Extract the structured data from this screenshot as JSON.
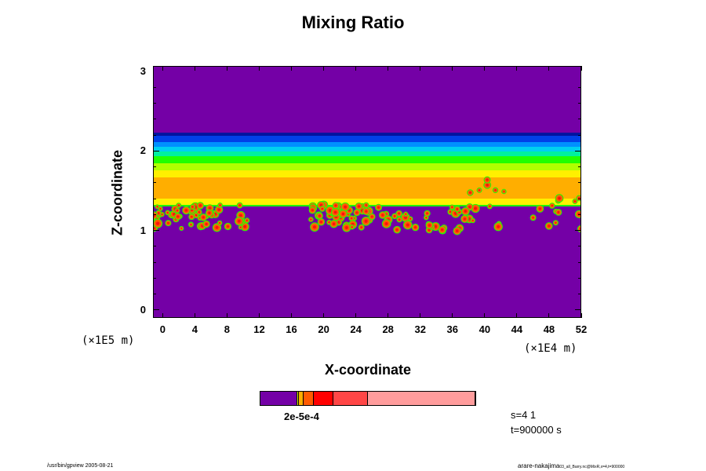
{
  "chart_data": {
    "type": "heatmap",
    "title": "Mixing Ratio",
    "xlabel": "X-coordinate",
    "ylabel": "Z-coordinate",
    "x_unit": "(×1E4 m)",
    "y_unit": "(×1E5 m)",
    "xlim": [
      -1.2,
      52
    ],
    "ylim": [
      -0.1,
      3.07
    ],
    "xticks": [
      "0",
      "4",
      "8",
      "12",
      "16",
      "20",
      "24",
      "28",
      "32",
      "36",
      "40",
      "44",
      "48",
      "52"
    ],
    "yticks": [
      "0",
      "1",
      "2",
      "3"
    ],
    "colorbar": {
      "label": "2e-5e-4",
      "colors": [
        "#7400a6",
        "#d8f000",
        "#ffae00",
        "#ff5a00",
        "#ff0000",
        "#ff4646",
        "#ff9c9c"
      ],
      "fractions": [
        0.17,
        0.01,
        0.02,
        0.05,
        0.09,
        0.16,
        0.5
      ]
    },
    "layers_description_colors": [
      "#7400a6",
      "#0014c8",
      "#0050ff",
      "#00c8ff",
      "#00f0a0",
      "#20ff00",
      "#b0ff00",
      "#fff000",
      "#ffae00"
    ]
  },
  "annotations": {
    "s": "s=4 1",
    "t": "t=900000 s"
  },
  "footer": {
    "left": "/usr/bin/gpview 2005-08-21",
    "right": "arare-nakajima",
    "right_small": "03_all_Barry.nc@MixR,x=4,t=900000"
  }
}
